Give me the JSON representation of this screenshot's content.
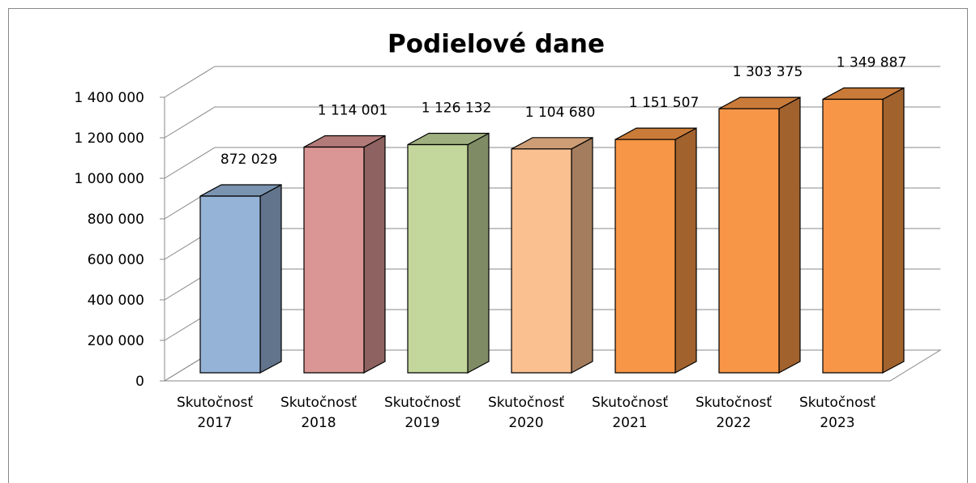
{
  "chart_data": {
    "type": "bar3d",
    "title": "Podielové dane",
    "categories": [
      "Skutočnosť 2017",
      "Skutočnosť 2018",
      "Skutočnosť 2019",
      "Skutočnosť 2020",
      "Skutočnosť 2021",
      "Skutočnosť 2022",
      "Skutočnosť 2023"
    ],
    "values": [
      872029,
      1114001,
      1126132,
      1104680,
      1151507,
      1303375,
      1349887
    ],
    "value_labels": [
      "872 029",
      "1 114 001",
      "1 126 132",
      "1 104 680",
      "1 151 507",
      "1 303 375",
      "1 349 887"
    ],
    "colors": [
      "#95b3d7",
      "#d99694",
      "#c3d69b",
      "#fac090",
      "#f79646",
      "#f79646",
      "#f79646"
    ],
    "ylim": [
      0,
      1400000
    ],
    "yticks": [
      0,
      {
        "value": 200000,
        "label": "200 000"
      },
      {
        "value": 400000,
        "label": "400 000"
      },
      {
        "value": 600000,
        "label": "600 000"
      },
      {
        "value": 800000,
        "label": "800 000"
      },
      {
        "value": 1000000,
        "label": "1 000 000"
      },
      {
        "value": 1200000,
        "label": "1 200 000"
      },
      {
        "value": 1400000,
        "label": "1 400 000"
      }
    ],
    "grid": true
  }
}
